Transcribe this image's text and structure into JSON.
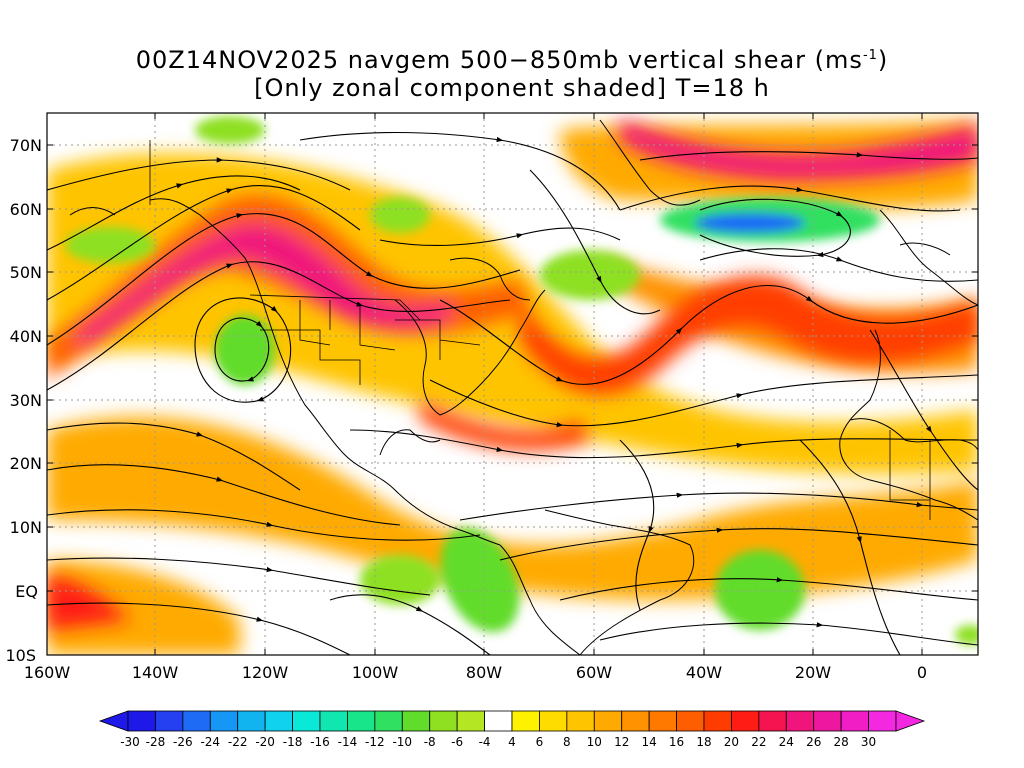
{
  "title": {
    "line1_prefix": "00Z14NOV2025 navgem 500−850mb vertical shear (ms",
    "line1_sup": "-1",
    "line1_suffix": ")",
    "line2": "[Only zonal component shaded] T=18 h"
  },
  "axes": {
    "lon_labels": [
      "160W",
      "140W",
      "120W",
      "100W",
      "80W",
      "60W",
      "40W",
      "20W",
      "0"
    ],
    "lat_labels": [
      "70N",
      "60N",
      "50N",
      "40N",
      "30N",
      "20N",
      "10N",
      "EQ",
      "10S"
    ]
  },
  "colorbar": {
    "labels": [
      "-30",
      "-28",
      "-26",
      "-24",
      "-22",
      "-20",
      "-18",
      "-16",
      "-14",
      "-12",
      "-10",
      "-8",
      "-6",
      "-4",
      "4",
      "6",
      "8",
      "10",
      "12",
      "14",
      "16",
      "18",
      "20",
      "22",
      "24",
      "26",
      "28",
      "30"
    ],
    "colors": [
      "#1e18e8",
      "#2440f0",
      "#1e6cf5",
      "#1696f5",
      "#12b4f0",
      "#10d2ee",
      "#0ae8d8",
      "#10e6b0",
      "#18e48a",
      "#30e060",
      "#62dc2a",
      "#8ee020",
      "#b4e624",
      "#ffffff",
      "#fff200",
      "#ffdc00",
      "#ffc400",
      "#ffaa00",
      "#ff9200",
      "#ff7800",
      "#ff5e00",
      "#ff3c00",
      "#ff1c14",
      "#f51450",
      "#f0147c",
      "#ee18a0",
      "#f01ec4",
      "#f428e0"
    ]
  },
  "map": {
    "shaded_field": "zonal component of 500-850mb vertical shear",
    "streamlines": true,
    "colors": {
      "positive_strong": "#f0147c",
      "positive_mid": "#ff7800",
      "positive_weak": "#ffdc00",
      "negative_weak": "#8ee020",
      "negative_strong": "#1e6cf5"
    }
  }
}
